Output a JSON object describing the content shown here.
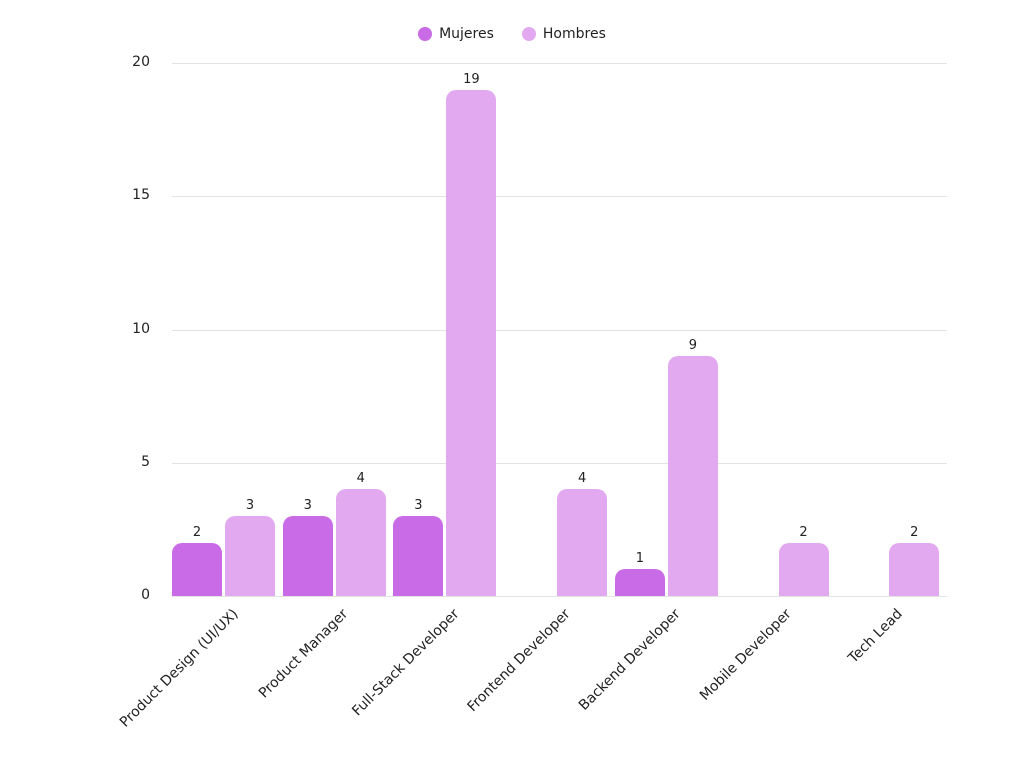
{
  "chart_data": {
    "type": "bar",
    "title": "",
    "xlabel": "",
    "ylabel": "",
    "ylim": [
      0,
      20
    ],
    "yticks": [
      0,
      5,
      10,
      15,
      20
    ],
    "grid": true,
    "legend_position": "top",
    "categories": [
      "Product Design (UI/UX)",
      "Product Manager",
      "Full-Stack Developer",
      "Frontend Developer",
      "Backend Developer",
      "Mobile Developer",
      "Tech Lead"
    ],
    "series": [
      {
        "name": "Mujeres",
        "color": "#c96ae6",
        "values": [
          2,
          3,
          3,
          0,
          1,
          0,
          0
        ]
      },
      {
        "name": "Hombres",
        "color": "#e2a9f0",
        "values": [
          3,
          4,
          19,
          4,
          9,
          2,
          2
        ]
      }
    ]
  },
  "legend": [
    {
      "label": "Mujeres",
      "color": "#c96ae6"
    },
    {
      "label": "Hombres",
      "color": "#e2a9f0"
    }
  ]
}
